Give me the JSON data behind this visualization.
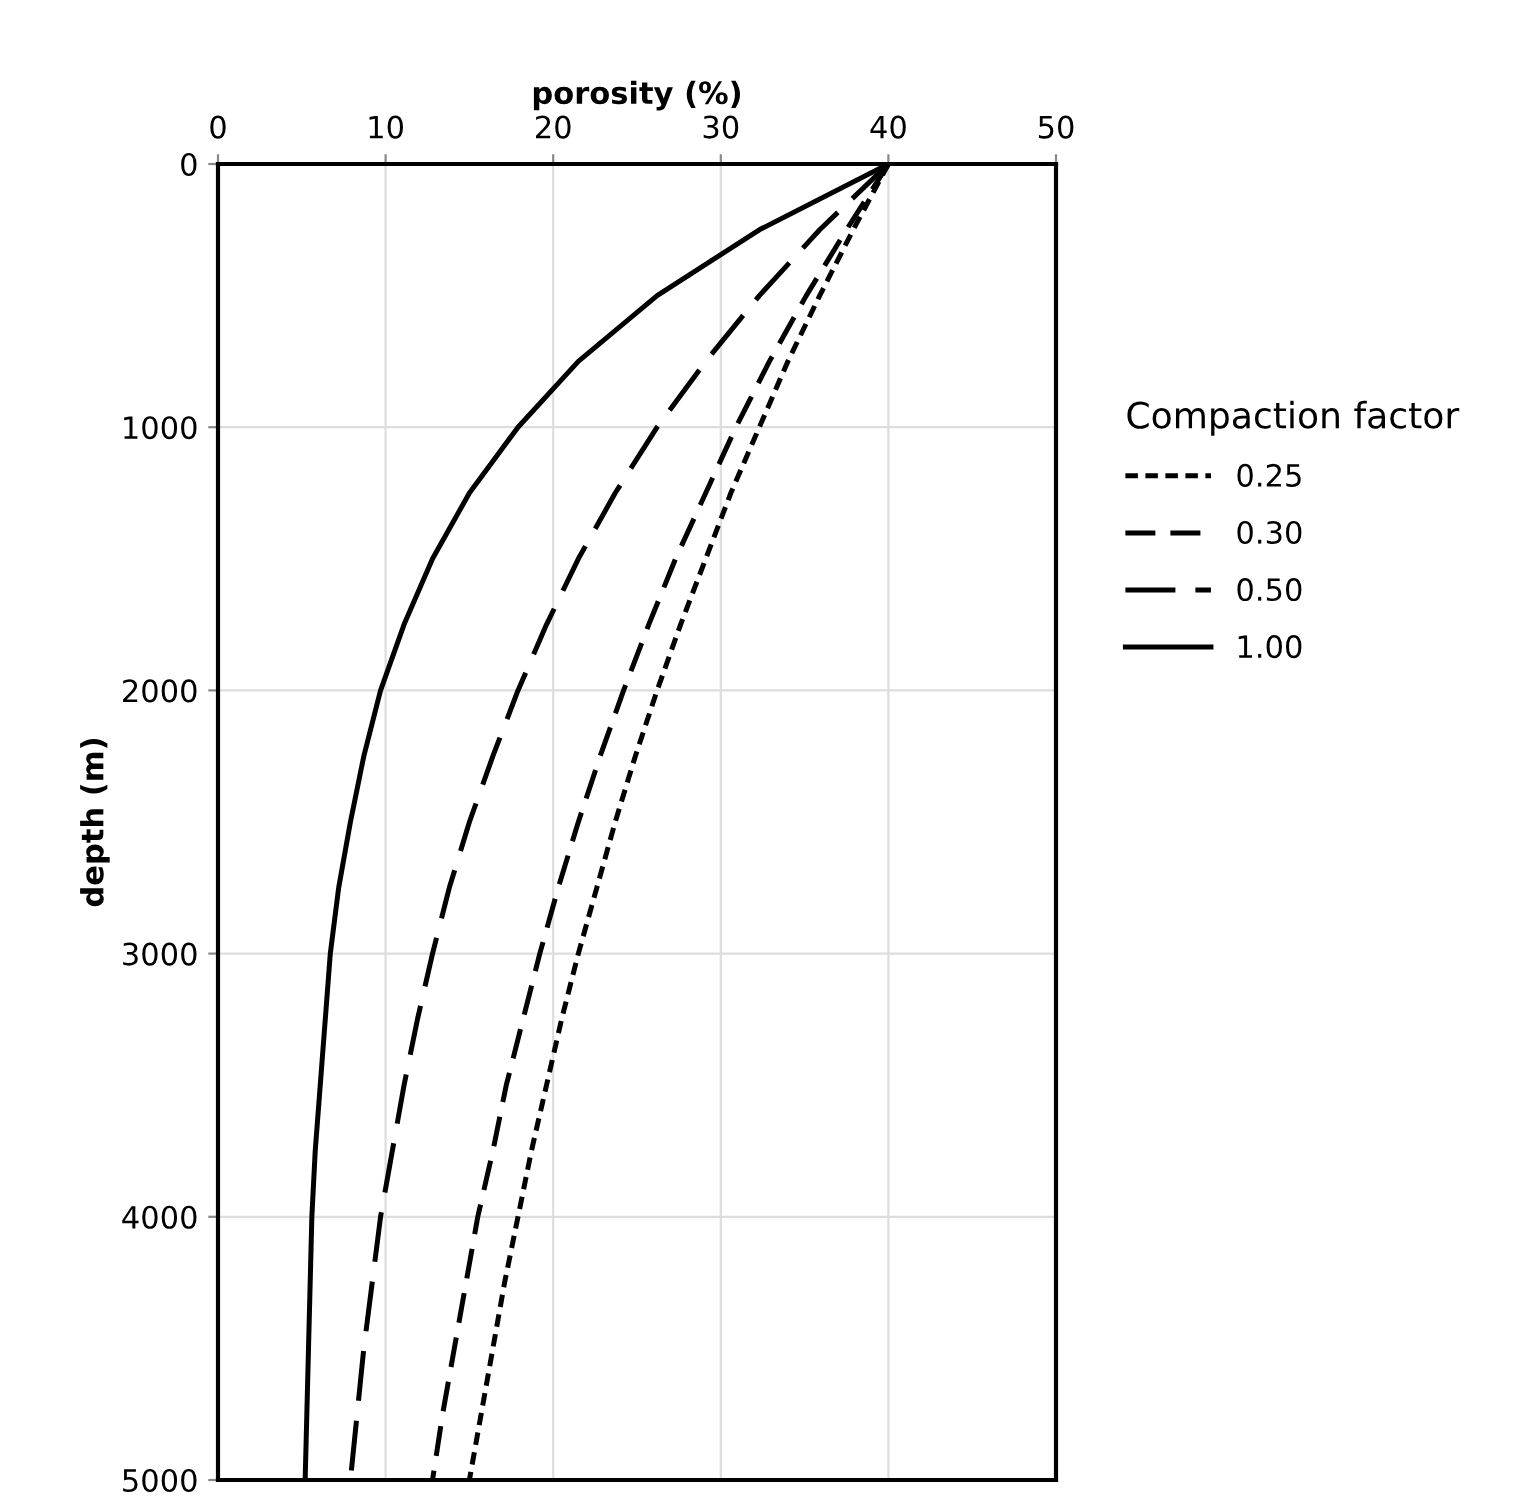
{
  "chart_data": {
    "type": "line",
    "xlabel": "porosity (%)",
    "ylabel": "depth (m)",
    "legend_title": "Compaction factor",
    "legend": "right",
    "xlim": [
      0,
      50
    ],
    "xticks": [
      0,
      10,
      20,
      30,
      40,
      50
    ],
    "ylim": [
      5000,
      0
    ],
    "yticks": [
      0,
      1000,
      2000,
      3000,
      4000,
      5000
    ],
    "grid": true,
    "marker": "none",
    "series": [
      {
        "name": "0.25",
        "color": "#000000",
        "line_style": "dotted",
        "x": [
          40,
          37.9,
          35.9,
          34.0,
          32.3,
          30.6,
          29.1,
          27.6,
          26.2,
          24.9,
          23.7,
          22.6,
          21.5,
          20.5,
          19.6,
          18.7,
          17.9,
          17.1,
          16.4,
          15.7,
          15.0
        ],
        "values": [
          0,
          250,
          500,
          750,
          1000,
          1250,
          1500,
          1750,
          2000,
          2250,
          2500,
          2750,
          3000,
          3250,
          3500,
          3750,
          4000,
          4250,
          4500,
          4750,
          5000
        ]
      },
      {
        "name": "0.30",
        "color": "#000000",
        "line_style": "dashed",
        "x": [
          40,
          37.5,
          35.1,
          32.9,
          30.9,
          29.1,
          27.3,
          25.7,
          24.2,
          22.8,
          21.5,
          20.3,
          19.2,
          18.2,
          17.2,
          16.4,
          15.5,
          14.8,
          14.1,
          13.4,
          12.8
        ],
        "values": [
          0,
          250,
          500,
          750,
          1000,
          1250,
          1500,
          1750,
          2000,
          2250,
          2500,
          2750,
          3000,
          3250,
          3500,
          3750,
          4000,
          4250,
          4500,
          4750,
          5000
        ]
      },
      {
        "name": "0.50",
        "color": "#000000",
        "line_style": "dashed",
        "x": [
          40,
          35.9,
          32.3,
          29.1,
          26.2,
          23.7,
          21.5,
          19.6,
          17.9,
          16.4,
          15.0,
          13.8,
          12.8,
          11.9,
          11.1,
          10.4,
          9.7,
          9.2,
          8.7,
          8.3,
          7.9
        ],
        "values": [
          0,
          250,
          500,
          750,
          1000,
          1250,
          1500,
          1750,
          2000,
          2250,
          2500,
          2750,
          3000,
          3250,
          3500,
          3750,
          4000,
          4250,
          4500,
          4750,
          5000
        ]
      },
      {
        "name": "1.00",
        "color": "#000000",
        "line_style": "solid",
        "x": [
          40,
          32.3,
          26.2,
          21.5,
          17.9,
          15.0,
          12.8,
          11.1,
          9.7,
          8.7,
          7.9,
          7.2,
          6.7,
          6.4,
          6.1,
          5.8,
          5.6,
          5.5,
          5.4,
          5.3,
          5.2
        ],
        "values": [
          0,
          250,
          500,
          750,
          1000,
          1250,
          1500,
          1750,
          2000,
          2250,
          2500,
          2750,
          3000,
          3250,
          3500,
          3750,
          4000,
          4250,
          4500,
          4750,
          5000
        ]
      }
    ]
  }
}
